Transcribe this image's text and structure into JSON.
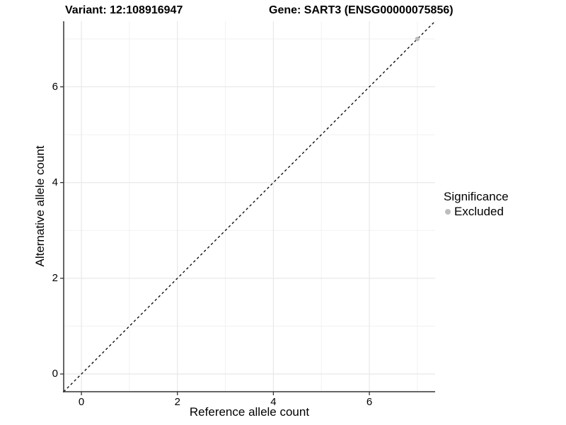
{
  "chart_data": {
    "type": "scatter",
    "title_left": "Variant: 12:108916947",
    "title_right": "Gene: SART3 (ENSG00000075856)",
    "xlabel": "Reference allele count",
    "ylabel": "Alternative allele count",
    "xlim": [
      -0.37,
      7.37
    ],
    "ylim": [
      -0.37,
      7.37
    ],
    "xticks": [
      0,
      2,
      4,
      6
    ],
    "yticks": [
      0,
      2,
      4,
      6
    ],
    "xticks_minor": [
      1,
      3,
      5,
      7
    ],
    "yticks_minor": [
      1,
      3,
      5,
      7
    ],
    "grid": "major+minor",
    "reference_line": {
      "type": "abline",
      "slope": 1,
      "intercept": 0,
      "style": "dashed",
      "color": "#000000"
    },
    "series": [
      {
        "name": "Excluded",
        "color": "#bdbdbd",
        "points": [
          {
            "x": 7,
            "y": 7
          }
        ]
      }
    ],
    "legend": {
      "title": "Significance",
      "position": "right",
      "entries": [
        {
          "label": "Excluded",
          "color": "#bdbdbd"
        }
      ]
    },
    "colors": {
      "background": "#ffffff",
      "grid_major": "#e8e8e8",
      "grid_minor": "#f1f1f1",
      "axis_line": "#333333",
      "text": "#000000"
    }
  }
}
